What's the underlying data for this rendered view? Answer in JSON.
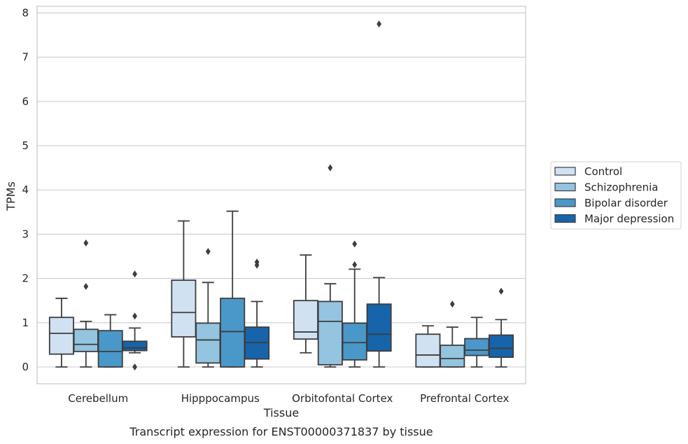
{
  "chart_data": {
    "type": "box",
    "title": "Transcript expression for ENST00000371837 by tissue",
    "xlabel": "Tissue",
    "ylabel": "TPMs",
    "ylim": [
      -0.38,
      8.15
    ],
    "yticks": [
      0,
      1,
      2,
      3,
      4,
      5,
      6,
      7,
      8
    ],
    "grid": true,
    "legend_position": "right",
    "categories": [
      "Cerebellum",
      "Hipppocampus",
      "Orbitofontal Cortex",
      "Prefrontal Cortex"
    ],
    "series": [
      {
        "name": "Control",
        "color": "#d0e1f2",
        "boxes": [
          {
            "whislo": 0.0,
            "q1": 0.29,
            "med": 0.76,
            "q3": 1.12,
            "whishi": 1.55,
            "fliers": []
          },
          {
            "whislo": 0.0,
            "q1": 0.68,
            "med": 1.23,
            "q3": 1.96,
            "whishi": 3.3,
            "fliers": []
          },
          {
            "whislo": 0.32,
            "q1": 0.63,
            "med": 0.79,
            "q3": 1.5,
            "whishi": 2.53,
            "fliers": []
          },
          {
            "whislo": 0.0,
            "q1": 0.0,
            "med": 0.27,
            "q3": 0.74,
            "whishi": 0.93,
            "fliers": []
          }
        ]
      },
      {
        "name": "Schizophrenia",
        "color": "#94c4df",
        "boxes": [
          {
            "whislo": 0.0,
            "q1": 0.35,
            "med": 0.51,
            "q3": 0.85,
            "whishi": 1.03,
            "fliers": [
              1.82,
              2.8
            ]
          },
          {
            "whislo": 0.0,
            "q1": 0.09,
            "med": 0.61,
            "q3": 0.99,
            "whishi": 1.91,
            "fliers": [
              2.61
            ]
          },
          {
            "whislo": 0.0,
            "q1": 0.05,
            "med": 1.03,
            "q3": 1.48,
            "whishi": 1.88,
            "fliers": [
              4.5
            ]
          },
          {
            "whislo": 0.0,
            "q1": 0.0,
            "med": 0.19,
            "q3": 0.49,
            "whishi": 0.9,
            "fliers": [
              1.42
            ]
          }
        ]
      },
      {
        "name": "Bipolar disorder",
        "color": "#4a98c9",
        "boxes": [
          {
            "whislo": 0.0,
            "q1": 0.0,
            "med": 0.35,
            "q3": 0.82,
            "whishi": 1.18,
            "fliers": []
          },
          {
            "whislo": 0.0,
            "q1": 0.0,
            "med": 0.8,
            "q3": 1.55,
            "whishi": 3.52,
            "fliers": []
          },
          {
            "whislo": 0.0,
            "q1": 0.16,
            "med": 0.55,
            "q3": 0.99,
            "whishi": 2.21,
            "fliers": [
              2.31,
              2.78
            ]
          },
          {
            "whislo": 0.0,
            "q1": 0.26,
            "med": 0.38,
            "q3": 0.64,
            "whishi": 1.12,
            "fliers": []
          }
        ]
      },
      {
        "name": "Major depression",
        "color": "#1764ab",
        "boxes": [
          {
            "whislo": 0.32,
            "q1": 0.37,
            "med": 0.43,
            "q3": 0.58,
            "whishi": 0.88,
            "fliers": [
              0.0,
              1.15,
              2.1
            ]
          },
          {
            "whislo": 0.0,
            "q1": 0.18,
            "med": 0.55,
            "q3": 0.9,
            "whishi": 1.48,
            "fliers": [
              2.3,
              2.37
            ]
          },
          {
            "whislo": 0.0,
            "q1": 0.36,
            "med": 0.74,
            "q3": 1.42,
            "whishi": 2.02,
            "fliers": [
              7.75
            ]
          },
          {
            "whislo": 0.0,
            "q1": 0.22,
            "med": 0.42,
            "q3": 0.72,
            "whishi": 1.07,
            "fliers": [
              1.71
            ]
          }
        ]
      }
    ]
  }
}
